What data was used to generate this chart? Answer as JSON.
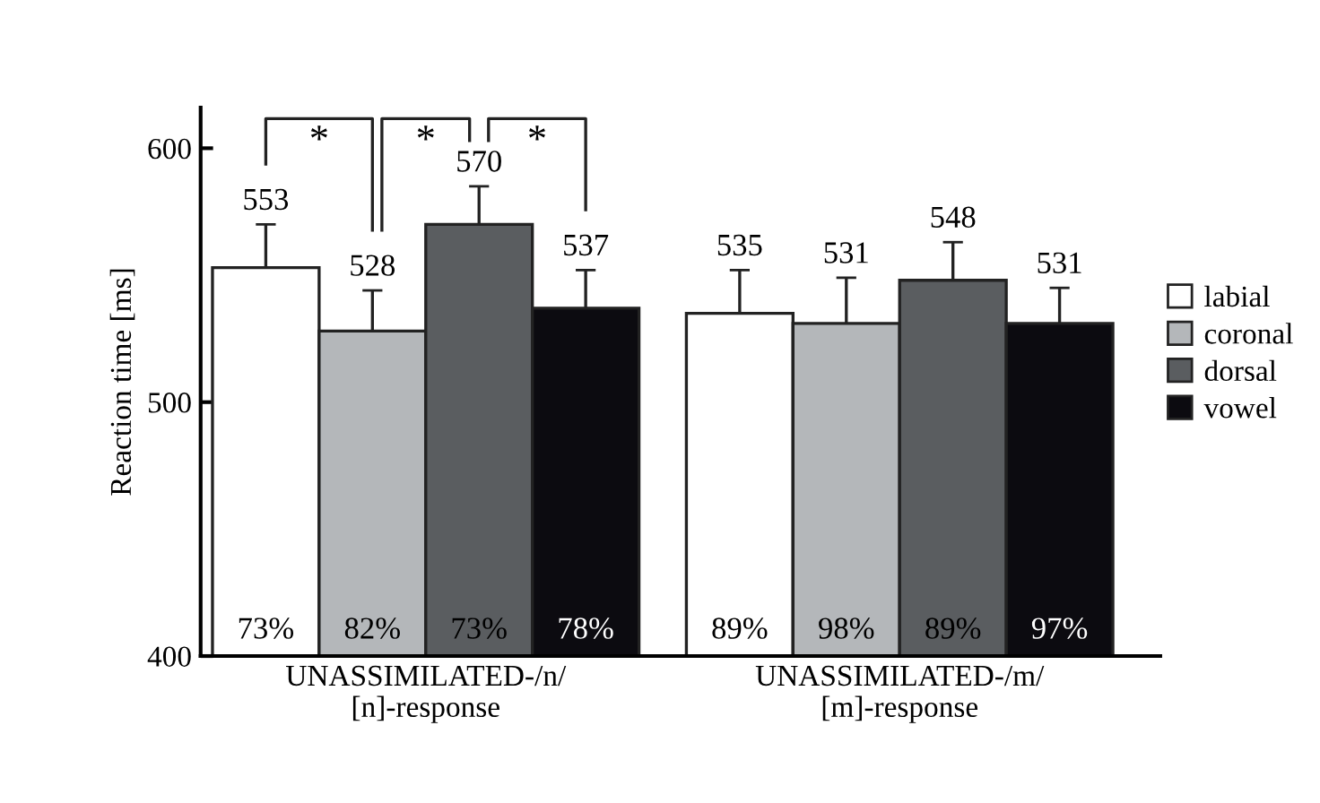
{
  "chart_data": {
    "type": "bar",
    "ylabel": "Reaction time [ms]",
    "categories": [
      "UNASSIMILATED-/n/\n[n]-response",
      "UNASSIMILATED-/m/\n[m]-response"
    ],
    "series": [
      {
        "name": "labial",
        "color": "#ffffff",
        "values": [
          553,
          535
        ],
        "errors": [
          17,
          17
        ]
      },
      {
        "name": "coronal",
        "color": "#b4b7ba",
        "values": [
          528,
          531
        ],
        "errors": [
          16,
          18
        ]
      },
      {
        "name": "dorsal",
        "color": "#5a5d60",
        "values": [
          570,
          548
        ],
        "errors": [
          15,
          15
        ]
      },
      {
        "name": "vowel",
        "color": "#0c0b10",
        "values": [
          537,
          531
        ],
        "errors": [
          15,
          14
        ]
      }
    ],
    "data_labels": true,
    "annotations": [
      "73%",
      "82%",
      "73%",
      "78%",
      "89%",
      "98%",
      "89%",
      "97%",
      "*",
      "*",
      "*"
    ],
    "ylim": [
      400,
      616
    ],
    "yticks": [
      400,
      500,
      600
    ],
    "grid": false,
    "legend": "right"
  }
}
